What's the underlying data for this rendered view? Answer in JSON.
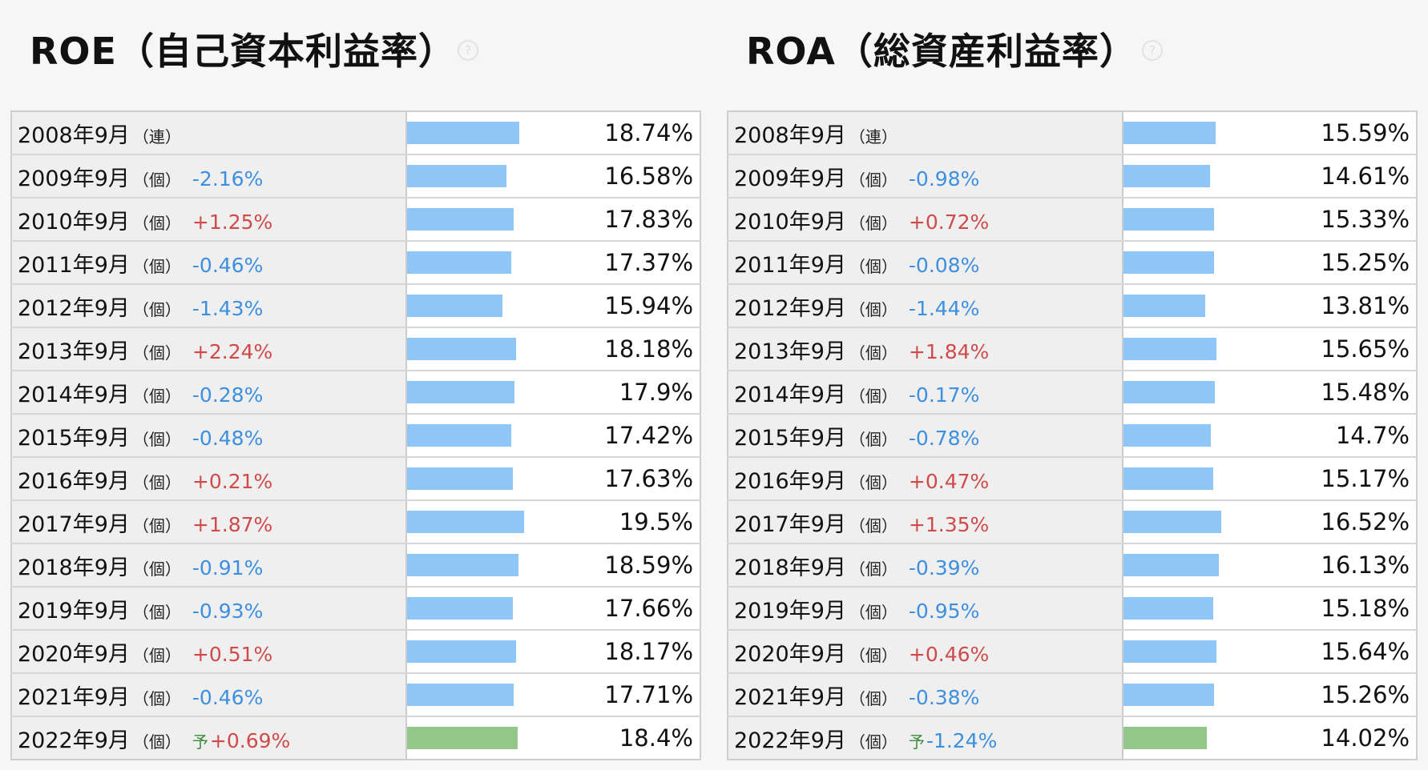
{
  "roe": {
    "title": "ROE（自己資本利益率）",
    "help_icon": "?",
    "rows": [
      {
        "year": "2008年9月",
        "unit": "（連）",
        "forecast_mark": "",
        "change": "",
        "value": "18.74%",
        "ratio": 18.74
      },
      {
        "year": "2009年9月",
        "unit": "（個）",
        "forecast_mark": "",
        "change": "-2.16%",
        "value": "16.58%",
        "ratio": 16.58
      },
      {
        "year": "2010年9月",
        "unit": "（個）",
        "forecast_mark": "",
        "change": "+1.25%",
        "value": "17.83%",
        "ratio": 17.83
      },
      {
        "year": "2011年9月",
        "unit": "（個）",
        "forecast_mark": "",
        "change": "-0.46%",
        "value": "17.37%",
        "ratio": 17.37
      },
      {
        "year": "2012年9月",
        "unit": "（個）",
        "forecast_mark": "",
        "change": "-1.43%",
        "value": "15.94%",
        "ratio": 15.94
      },
      {
        "year": "2013年9月",
        "unit": "（個）",
        "forecast_mark": "",
        "change": "+2.24%",
        "value": "18.18%",
        "ratio": 18.18
      },
      {
        "year": "2014年9月",
        "unit": "（個）",
        "forecast_mark": "",
        "change": "-0.28%",
        "value": "17.9%",
        "ratio": 17.9
      },
      {
        "year": "2015年9月",
        "unit": "（個）",
        "forecast_mark": "",
        "change": "-0.48%",
        "value": "17.42%",
        "ratio": 17.42
      },
      {
        "year": "2016年9月",
        "unit": "（個）",
        "forecast_mark": "",
        "change": "+0.21%",
        "value": "17.63%",
        "ratio": 17.63
      },
      {
        "year": "2017年9月",
        "unit": "（個）",
        "forecast_mark": "",
        "change": "+1.87%",
        "value": "19.5%",
        "ratio": 19.5
      },
      {
        "year": "2018年9月",
        "unit": "（個）",
        "forecast_mark": "",
        "change": "-0.91%",
        "value": "18.59%",
        "ratio": 18.59
      },
      {
        "year": "2019年9月",
        "unit": "（個）",
        "forecast_mark": "",
        "change": "-0.93%",
        "value": "17.66%",
        "ratio": 17.66
      },
      {
        "year": "2020年9月",
        "unit": "（個）",
        "forecast_mark": "",
        "change": "+0.51%",
        "value": "18.17%",
        "ratio": 18.17
      },
      {
        "year": "2021年9月",
        "unit": "（個）",
        "forecast_mark": "",
        "change": "-0.46%",
        "value": "17.71%",
        "ratio": 17.71
      },
      {
        "year": "2022年9月",
        "unit": "（個）",
        "forecast_mark": "予",
        "change": "+0.69%",
        "value": "18.4%",
        "ratio": 18.4
      }
    ]
  },
  "roa": {
    "title": "ROA（総資産利益率）",
    "help_icon": "?",
    "rows": [
      {
        "year": "2008年9月",
        "unit": "（連）",
        "forecast_mark": "",
        "change": "",
        "value": "15.59%",
        "ratio": 15.59
      },
      {
        "year": "2009年9月",
        "unit": "（個）",
        "forecast_mark": "",
        "change": "-0.98%",
        "value": "14.61%",
        "ratio": 14.61
      },
      {
        "year": "2010年9月",
        "unit": "（個）",
        "forecast_mark": "",
        "change": "+0.72%",
        "value": "15.33%",
        "ratio": 15.33
      },
      {
        "year": "2011年9月",
        "unit": "（個）",
        "forecast_mark": "",
        "change": "-0.08%",
        "value": "15.25%",
        "ratio": 15.25
      },
      {
        "year": "2012年9月",
        "unit": "（個）",
        "forecast_mark": "",
        "change": "-1.44%",
        "value": "13.81%",
        "ratio": 13.81
      },
      {
        "year": "2013年9月",
        "unit": "（個）",
        "forecast_mark": "",
        "change": "+1.84%",
        "value": "15.65%",
        "ratio": 15.65
      },
      {
        "year": "2014年9月",
        "unit": "（個）",
        "forecast_mark": "",
        "change": "-0.17%",
        "value": "15.48%",
        "ratio": 15.48
      },
      {
        "year": "2015年9月",
        "unit": "（個）",
        "forecast_mark": "",
        "change": "-0.78%",
        "value": "14.7%",
        "ratio": 14.7
      },
      {
        "year": "2016年9月",
        "unit": "（個）",
        "forecast_mark": "",
        "change": "+0.47%",
        "value": "15.17%",
        "ratio": 15.17
      },
      {
        "year": "2017年9月",
        "unit": "（個）",
        "forecast_mark": "",
        "change": "+1.35%",
        "value": "16.52%",
        "ratio": 16.52
      },
      {
        "year": "2018年9月",
        "unit": "（個）",
        "forecast_mark": "",
        "change": "-0.39%",
        "value": "16.13%",
        "ratio": 16.13
      },
      {
        "year": "2019年9月",
        "unit": "（個）",
        "forecast_mark": "",
        "change": "-0.95%",
        "value": "15.18%",
        "ratio": 15.18
      },
      {
        "year": "2020年9月",
        "unit": "（個）",
        "forecast_mark": "",
        "change": "+0.46%",
        "value": "15.64%",
        "ratio": 15.64
      },
      {
        "year": "2021年9月",
        "unit": "（個）",
        "forecast_mark": "",
        "change": "-0.38%",
        "value": "15.26%",
        "ratio": 15.26
      },
      {
        "year": "2022年9月",
        "unit": "（個）",
        "forecast_mark": "予",
        "change": "-1.24%",
        "value": "14.02%",
        "ratio": 14.02
      }
    ]
  },
  "colors": {
    "bar_actual": "#8ec6f8",
    "bar_forecast": "#93c789",
    "change_negative": "#3d8fe0",
    "change_positive": "#d04a4a",
    "forecast_mark": "#3a8a3a"
  }
}
